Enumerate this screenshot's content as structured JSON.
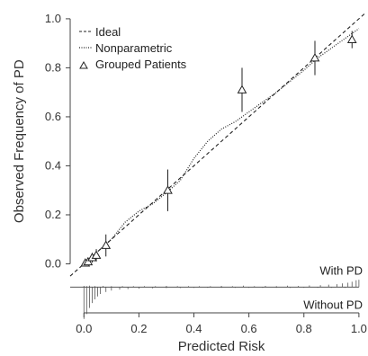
{
  "chart_data": {
    "type": "scatter",
    "xlabel": "Predicted Risk",
    "ylabel": "Observed Frequency of PD",
    "xlim": [
      -0.05,
      1.02
    ],
    "ylim": [
      -0.2,
      1.04
    ],
    "x_ticks": [
      {
        "value": 0.0,
        "label": "0.0"
      },
      {
        "value": 0.2,
        "label": "0.2"
      },
      {
        "value": 0.4,
        "label": "0.4"
      },
      {
        "value": 0.6,
        "label": "0.6"
      },
      {
        "value": 0.8,
        "label": "0.8"
      },
      {
        "value": 1.0,
        "label": "1.0"
      }
    ],
    "y_ticks": [
      {
        "value": 0.0,
        "label": "0.0"
      },
      {
        "value": 0.2,
        "label": "0.2"
      },
      {
        "value": 0.4,
        "label": "0.4"
      },
      {
        "value": 0.6,
        "label": "0.6"
      },
      {
        "value": 0.8,
        "label": "0.8"
      },
      {
        "value": 1.0,
        "label": "1.0"
      }
    ],
    "legend": {
      "position": "top-left",
      "items": [
        {
          "label": "Ideal",
          "style": "dashed"
        },
        {
          "label": "Nonparametric",
          "style": "dotted"
        },
        {
          "label": "Grouped Patients",
          "style": "triangle"
        }
      ]
    },
    "ideal_line": [
      [
        -0.05,
        -0.05
      ],
      [
        1.02,
        1.02
      ]
    ],
    "nonparametric_curve": [
      [
        0.0,
        0.0
      ],
      [
        0.03,
        0.03
      ],
      [
        0.06,
        0.06
      ],
      [
        0.1,
        0.1
      ],
      [
        0.15,
        0.17
      ],
      [
        0.2,
        0.215
      ],
      [
        0.25,
        0.245
      ],
      [
        0.3,
        0.29
      ],
      [
        0.35,
        0.34
      ],
      [
        0.4,
        0.43
      ],
      [
        0.45,
        0.5
      ],
      [
        0.5,
        0.55
      ],
      [
        0.55,
        0.58
      ],
      [
        0.6,
        0.62
      ],
      [
        0.7,
        0.7
      ],
      [
        0.8,
        0.79
      ],
      [
        0.85,
        0.84
      ],
      [
        0.9,
        0.88
      ],
      [
        0.95,
        0.92
      ],
      [
        1.0,
        0.96
      ]
    ],
    "grouped_patients": [
      {
        "x": 0.005,
        "y": 0.003,
        "lo": 0.0,
        "hi": 0.01
      },
      {
        "x": 0.015,
        "y": 0.008,
        "lo": 0.0,
        "hi": 0.02
      },
      {
        "x": 0.03,
        "y": 0.025,
        "lo": 0.005,
        "hi": 0.045
      },
      {
        "x": 0.045,
        "y": 0.035,
        "lo": 0.01,
        "hi": 0.06
      },
      {
        "x": 0.08,
        "y": 0.075,
        "lo": 0.03,
        "hi": 0.12
      },
      {
        "x": 0.305,
        "y": 0.3,
        "lo": 0.215,
        "hi": 0.385
      },
      {
        "x": 0.575,
        "y": 0.71,
        "lo": 0.62,
        "hi": 0.8
      },
      {
        "x": 0.84,
        "y": 0.84,
        "lo": 0.77,
        "hi": 0.91
      },
      {
        "x": 0.975,
        "y": 0.915,
        "lo": 0.88,
        "hi": 0.95
      }
    ],
    "rug_annotations": {
      "with": "With PD",
      "without": "Without PD"
    },
    "rug_baseline_y": -0.095,
    "rug_with_pd": [
      {
        "x": 0.0,
        "h": 0.005
      },
      {
        "x": 0.01,
        "h": 0.004
      },
      {
        "x": 0.02,
        "h": 0.006
      },
      {
        "x": 0.04,
        "h": 0.004
      },
      {
        "x": 0.07,
        "h": 0.005
      },
      {
        "x": 0.1,
        "h": 0.004
      },
      {
        "x": 0.14,
        "h": 0.004
      },
      {
        "x": 0.18,
        "h": 0.004
      },
      {
        "x": 0.22,
        "h": 0.004
      },
      {
        "x": 0.26,
        "h": 0.004
      },
      {
        "x": 0.3,
        "h": 0.005
      },
      {
        "x": 0.34,
        "h": 0.004
      },
      {
        "x": 0.38,
        "h": 0.004
      },
      {
        "x": 0.42,
        "h": 0.004
      },
      {
        "x": 0.46,
        "h": 0.004
      },
      {
        "x": 0.5,
        "h": 0.005
      },
      {
        "x": 0.54,
        "h": 0.004
      },
      {
        "x": 0.58,
        "h": 0.006
      },
      {
        "x": 0.62,
        "h": 0.004
      },
      {
        "x": 0.66,
        "h": 0.005
      },
      {
        "x": 0.7,
        "h": 0.004
      },
      {
        "x": 0.74,
        "h": 0.006
      },
      {
        "x": 0.78,
        "h": 0.005
      },
      {
        "x": 0.82,
        "h": 0.007
      },
      {
        "x": 0.86,
        "h": 0.008
      },
      {
        "x": 0.89,
        "h": 0.01
      },
      {
        "x": 0.92,
        "h": 0.012
      },
      {
        "x": 0.94,
        "h": 0.015
      },
      {
        "x": 0.96,
        "h": 0.018
      },
      {
        "x": 0.975,
        "h": 0.022
      },
      {
        "x": 0.99,
        "h": 0.028
      },
      {
        "x": 1.0,
        "h": 0.03
      }
    ],
    "rug_without_pd": [
      {
        "x": 0.0,
        "h": 0.13
      },
      {
        "x": 0.01,
        "h": 0.11
      },
      {
        "x": 0.02,
        "h": 0.085
      },
      {
        "x": 0.03,
        "h": 0.065
      },
      {
        "x": 0.04,
        "h": 0.05
      },
      {
        "x": 0.05,
        "h": 0.038
      },
      {
        "x": 0.06,
        "h": 0.028
      },
      {
        "x": 0.08,
        "h": 0.02
      },
      {
        "x": 0.1,
        "h": 0.014
      },
      {
        "x": 0.13,
        "h": 0.01
      },
      {
        "x": 0.16,
        "h": 0.008
      },
      {
        "x": 0.2,
        "h": 0.006
      },
      {
        "x": 0.25,
        "h": 0.005
      },
      {
        "x": 0.3,
        "h": 0.004
      },
      {
        "x": 0.35,
        "h": 0.004
      },
      {
        "x": 0.4,
        "h": 0.003
      },
      {
        "x": 0.45,
        "h": 0.003
      },
      {
        "x": 0.5,
        "h": 0.003
      },
      {
        "x": 0.55,
        "h": 0.003
      },
      {
        "x": 0.6,
        "h": 0.003
      },
      {
        "x": 0.65,
        "h": 0.003
      },
      {
        "x": 0.7,
        "h": 0.003
      },
      {
        "x": 0.75,
        "h": 0.003
      },
      {
        "x": 0.8,
        "h": 0.003
      },
      {
        "x": 0.85,
        "h": 0.003
      },
      {
        "x": 0.9,
        "h": 0.003
      },
      {
        "x": 0.95,
        "h": 0.003
      }
    ],
    "colors": {
      "ink": "#222222",
      "axis": "#444444",
      "rug": "#555555"
    }
  }
}
